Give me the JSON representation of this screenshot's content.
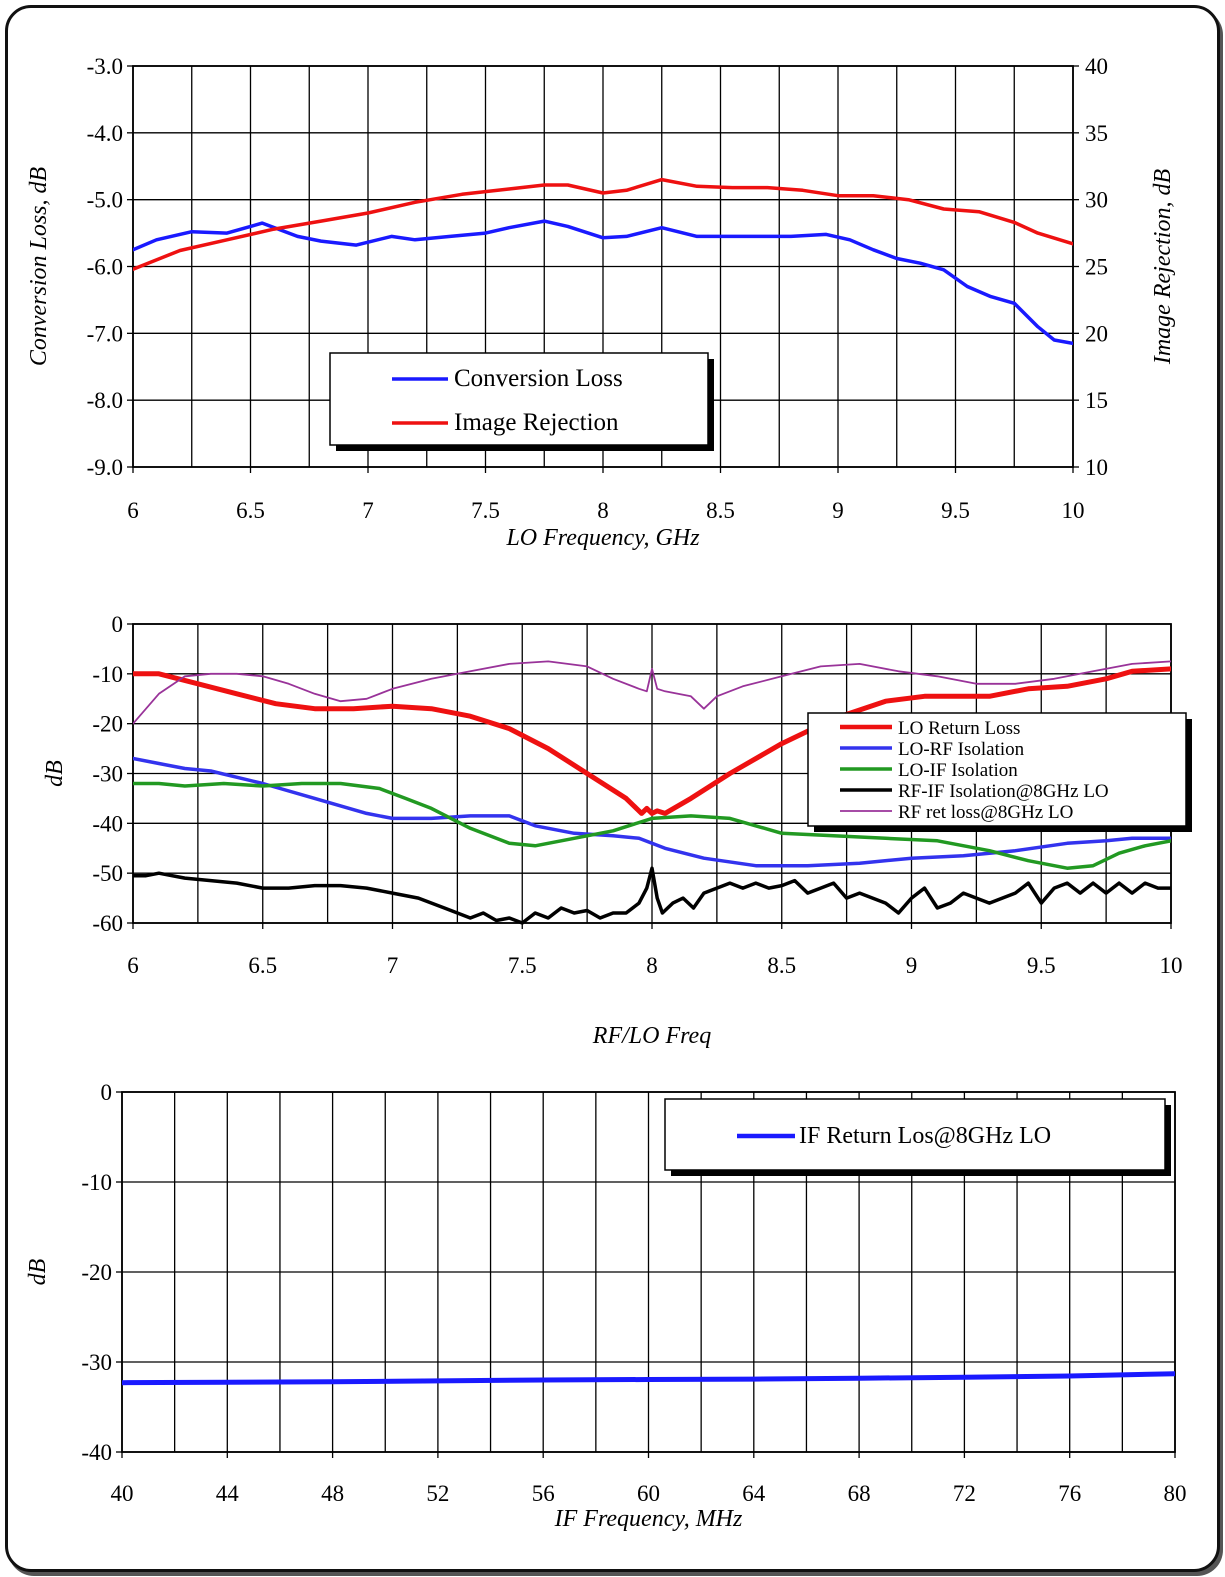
{
  "chart_data": [
    {
      "type": "line",
      "xlabel": "LO Frequency, GHz",
      "ylabel": "Conversion Loss, dB",
      "y2label": "Image Rejection, dB",
      "xlim": [
        6,
        10
      ],
      "ylim": [
        -9.0,
        -3.0
      ],
      "y2lim": [
        10,
        40
      ],
      "xticks": [
        "6",
        "6.5",
        "7",
        "7.5",
        "8",
        "8.5",
        "9",
        "9.5",
        "10"
      ],
      "yticks": [
        "-9.0",
        "-8.0",
        "-7.0",
        "-6.0",
        "-5.0",
        "-4.0",
        "-3.0"
      ],
      "y2ticks": [
        "10",
        "15",
        "20",
        "25",
        "30",
        "35",
        "40"
      ],
      "grid": true,
      "series": [
        {
          "name": "Conversion Loss",
          "axis": "left",
          "color": "#1a1aff",
          "x": [
            6,
            6.1,
            6.25,
            6.4,
            6.55,
            6.7,
            6.8,
            6.95,
            7.1,
            7.2,
            7.35,
            7.5,
            7.6,
            7.75,
            7.85,
            8,
            8.1,
            8.25,
            8.4,
            8.55,
            8.7,
            8.8,
            8.95,
            9.05,
            9.15,
            9.25,
            9.35,
            9.45,
            9.55,
            9.65,
            9.75,
            9.85,
            9.92,
            10
          ],
          "y": [
            -5.75,
            -5.6,
            -5.48,
            -5.5,
            -5.35,
            -5.55,
            -5.62,
            -5.68,
            -5.55,
            -5.6,
            -5.55,
            -5.5,
            -5.42,
            -5.32,
            -5.4,
            -5.57,
            -5.55,
            -5.42,
            -5.55,
            -5.55,
            -5.55,
            -5.55,
            -5.52,
            -5.6,
            -5.75,
            -5.88,
            -5.95,
            -6.05,
            -6.3,
            -6.45,
            -6.55,
            -6.9,
            -7.1,
            -7.15
          ]
        },
        {
          "name": "Image Rejection",
          "axis": "right",
          "color": "#ee1111",
          "x": [
            6,
            6.2,
            6.4,
            6.6,
            6.8,
            7,
            7.2,
            7.4,
            7.6,
            7.75,
            7.85,
            8,
            8.1,
            8.25,
            8.4,
            8.55,
            8.7,
            8.85,
            9,
            9.15,
            9.3,
            9.45,
            9.6,
            9.75,
            9.85,
            10
          ],
          "y": [
            24.8,
            26.2,
            27,
            27.8,
            28.4,
            29,
            29.8,
            30.4,
            30.8,
            31.1,
            31.1,
            30.5,
            30.7,
            31.5,
            31,
            30.9,
            30.9,
            30.7,
            30.3,
            30.3,
            30,
            29.3,
            29.1,
            28.3,
            27.5,
            26.7
          ]
        }
      ],
      "legend": {
        "position": "center-left",
        "entries": [
          "Conversion Loss",
          "Image Rejection"
        ]
      }
    },
    {
      "type": "line",
      "xlabel": "RF/LO Freq",
      "ylabel": "dB",
      "xlim": [
        6,
        10
      ],
      "ylim": [
        -60,
        0
      ],
      "xticks": [
        "6",
        "6.5",
        "7",
        "7.5",
        "8",
        "8.5",
        "9",
        "9.5",
        "10"
      ],
      "yticks": [
        "-60",
        "-50",
        "-40",
        "-30",
        "-20",
        "-10",
        "0"
      ],
      "grid": true,
      "series": [
        {
          "name": "LO Return Loss",
          "color": "#ee1111",
          "width": 5,
          "x": [
            6,
            6.1,
            6.25,
            6.4,
            6.55,
            6.7,
            6.85,
            7,
            7.15,
            7.3,
            7.45,
            7.6,
            7.75,
            7.9,
            7.96,
            7.98,
            8,
            8.02,
            8.05,
            8.15,
            8.3,
            8.5,
            8.7,
            8.9,
            9.05,
            9.2,
            9.3,
            9.45,
            9.6,
            9.75,
            9.85,
            10
          ],
          "y": [
            -10,
            -10,
            -12,
            -14,
            -16,
            -17,
            -17,
            -16.5,
            -17,
            -18.5,
            -21,
            -25,
            -30,
            -35,
            -38,
            -37,
            -38,
            -37.5,
            -38,
            -35,
            -30,
            -24,
            -19,
            -15.5,
            -14.5,
            -14.5,
            -14.5,
            -13,
            -12.5,
            -11,
            -9.5,
            -9
          ]
        },
        {
          "name": "LO-RF Isolation",
          "color": "#3333ee",
          "width": 3.5,
          "x": [
            6,
            6.1,
            6.2,
            6.3,
            6.5,
            6.7,
            6.9,
            7,
            7.15,
            7.3,
            7.45,
            7.55,
            7.7,
            7.85,
            7.95,
            8.05,
            8.2,
            8.4,
            8.6,
            8.8,
            9,
            9.2,
            9.4,
            9.6,
            9.75,
            9.85,
            10
          ],
          "y": [
            -27,
            -28,
            -29,
            -29.5,
            -32,
            -35,
            -38,
            -39,
            -39,
            -38.5,
            -38.5,
            -40.5,
            -42,
            -42.5,
            -43,
            -45,
            -47,
            -48.5,
            -48.5,
            -48,
            -47,
            -46.5,
            -45.5,
            -44,
            -43.5,
            -43,
            -43
          ]
        },
        {
          "name": "LO-IF Isolation",
          "color": "#229922",
          "width": 3.5,
          "x": [
            6,
            6.1,
            6.2,
            6.35,
            6.5,
            6.65,
            6.8,
            6.95,
            7.05,
            7.15,
            7.3,
            7.45,
            7.55,
            7.7,
            7.85,
            8,
            8.15,
            8.3,
            8.5,
            8.7,
            8.9,
            9.1,
            9.3,
            9.45,
            9.6,
            9.7,
            9.8,
            9.9,
            10
          ],
          "y": [
            -32,
            -32,
            -32.5,
            -32,
            -32.5,
            -32,
            -32,
            -33,
            -35,
            -37,
            -41,
            -44,
            -44.5,
            -43,
            -41.5,
            -39,
            -38.5,
            -39,
            -42,
            -42.5,
            -43,
            -43.5,
            -45.5,
            -47.5,
            -49,
            -48.5,
            -46,
            -44.5,
            -43.5
          ]
        },
        {
          "name": "RF-IF Isolation@8GHz LO",
          "color": "#000000",
          "width": 3.5,
          "x": [
            6,
            6.05,
            6.1,
            6.2,
            6.3,
            6.4,
            6.5,
            6.6,
            6.7,
            6.8,
            6.9,
            7,
            7.1,
            7.2,
            7.25,
            7.3,
            7.35,
            7.4,
            7.45,
            7.5,
            7.55,
            7.6,
            7.65,
            7.7,
            7.75,
            7.8,
            7.85,
            7.9,
            7.95,
            7.98,
            8,
            8.02,
            8.04,
            8.08,
            8.12,
            8.16,
            8.2,
            8.25,
            8.3,
            8.35,
            8.4,
            8.45,
            8.5,
            8.55,
            8.6,
            8.65,
            8.7,
            8.75,
            8.8,
            8.85,
            8.9,
            8.95,
            9,
            9.05,
            9.1,
            9.15,
            9.2,
            9.25,
            9.3,
            9.35,
            9.4,
            9.45,
            9.5,
            9.55,
            9.6,
            9.65,
            9.7,
            9.75,
            9.8,
            9.85,
            9.9,
            9.95,
            10
          ],
          "y": [
            -50.5,
            -50.5,
            -50,
            -51,
            -51.5,
            -52,
            -53,
            -53,
            -52.5,
            -52.5,
            -53,
            -54,
            -55,
            -57,
            -58,
            -59,
            -58,
            -59.5,
            -59,
            -60,
            -58,
            -59,
            -57,
            -58,
            -57.5,
            -59,
            -58,
            -58,
            -56,
            -53,
            -49,
            -55,
            -58,
            -56,
            -55,
            -57,
            -54,
            -53,
            -52,
            -53,
            -52,
            -53,
            -52.5,
            -51.5,
            -54,
            -53,
            -52,
            -55,
            -54,
            -55,
            -56,
            -58,
            -55,
            -53,
            -57,
            -56,
            -54,
            -55,
            -56,
            -55,
            -54,
            -52,
            -56,
            -53,
            -52,
            -54,
            -52,
            -54,
            -52,
            -54,
            -52,
            -53,
            -53
          ]
        },
        {
          "name": "RF ret loss@8GHz LO",
          "color": "#993399",
          "width": 1.8,
          "x": [
            6,
            6.1,
            6.2,
            6.3,
            6.4,
            6.5,
            6.6,
            6.7,
            6.8,
            6.9,
            7,
            7.15,
            7.3,
            7.45,
            7.6,
            7.75,
            7.85,
            7.95,
            7.98,
            8,
            8.02,
            8.05,
            8.1,
            8.15,
            8.2,
            8.25,
            8.35,
            8.5,
            8.65,
            8.8,
            8.95,
            9.1,
            9.25,
            9.4,
            9.55,
            9.7,
            9.85,
            10
          ],
          "y": [
            -20,
            -14,
            -10.5,
            -10,
            -10,
            -10.5,
            -12,
            -14,
            -15.5,
            -15,
            -13,
            -11,
            -9.5,
            -8,
            -7.5,
            -8.5,
            -11,
            -13,
            -13.5,
            -9,
            -13,
            -13.5,
            -14,
            -14.5,
            -17,
            -14.5,
            -12.5,
            -10.5,
            -8.5,
            -8,
            -9.5,
            -10.5,
            -12,
            -12,
            -11,
            -9.5,
            -8,
            -7.5
          ]
        }
      ],
      "legend": {
        "position": "right",
        "entries": [
          "LO Return Loss",
          "LO-RF Isolation",
          "LO-IF Isolation",
          "RF-IF Isolation@8GHz LO",
          "RF ret loss@8GHz LO"
        ]
      }
    },
    {
      "type": "line",
      "xlabel": "IF Frequency,  MHz",
      "ylabel": "dB",
      "xlim": [
        40,
        80
      ],
      "ylim": [
        -40,
        0
      ],
      "xticks": [
        "40",
        "44",
        "48",
        "52",
        "56",
        "60",
        "64",
        "68",
        "72",
        "76",
        "80"
      ],
      "yticks": [
        "-40",
        "-30",
        "-20",
        "-10",
        "0"
      ],
      "grid": true,
      "series": [
        {
          "name": "IF Return Los@8GHz LO",
          "color": "#1a1aff",
          "width": 5,
          "x": [
            40,
            44,
            48,
            52,
            56,
            60,
            64,
            68,
            72,
            76,
            80
          ],
          "y": [
            -32.3,
            -32.25,
            -32.2,
            -32.1,
            -32,
            -31.95,
            -31.9,
            -31.8,
            -31.7,
            -31.55,
            -31.3
          ]
        }
      ],
      "legend": {
        "position": "top-right",
        "entries": [
          "IF Return Los@8GHz LO"
        ]
      }
    }
  ]
}
